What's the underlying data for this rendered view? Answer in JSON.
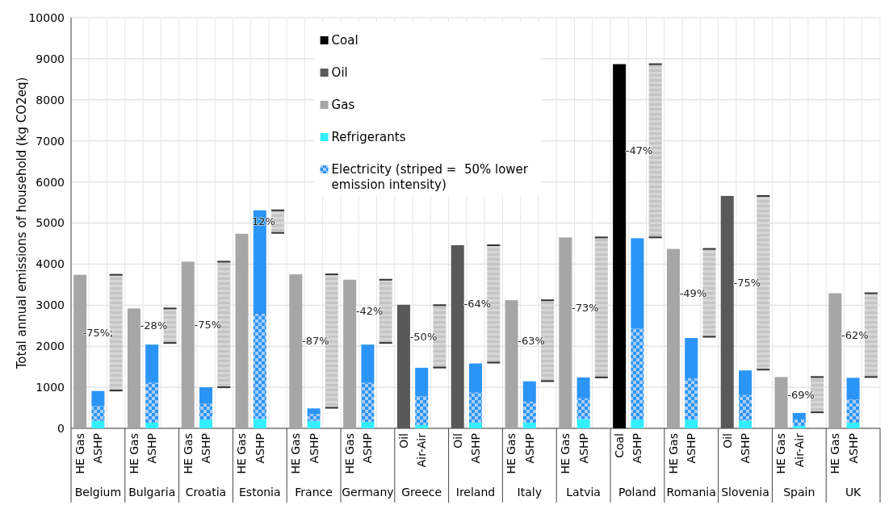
{
  "chart_data": {
    "type": "bar",
    "stacked": true,
    "ylabel": "Total annual emissions of household (kg CO2eq)",
    "categories": [
      "HE Gas",
      "ASHP",
      null,
      "HE Gas",
      "ASHP",
      null,
      "HE Gas",
      "ASHP",
      null,
      "HE Gas",
      "ASHP",
      null,
      "HE Gas",
      "ASHP",
      null,
      "HE Gas",
      "ASHP",
      null,
      "Oil",
      "Air-Air",
      null,
      "Oil",
      "ASHP",
      null,
      "HE Gas",
      "ASHP",
      null,
      "HE Gas",
      "ASHP",
      null,
      "Coal",
      "ASHP",
      null,
      "HE Gas",
      "ASHP",
      null,
      "Oil",
      "ASHP",
      null,
      "HE Gas",
      "Air-Air",
      null,
      "HE Gas",
      "ASHP",
      null
    ],
    "annotations": [
      "Belgium",
      "Bulgaria",
      "Croatia",
      "Estonia",
      "France",
      "Germany",
      "Greece",
      "Ireland",
      "Italy",
      "Latvia",
      "Poland",
      "Romania",
      "Slovenia",
      "Spain",
      "UK",
      "-75%;",
      "-28%",
      "-75%",
      "12%",
      "-87%",
      "-42%",
      "-50%",
      "-64%",
      "-63%",
      "-73%",
      "-47%",
      "-49%",
      "-75%",
      "-69%",
      "-62%"
    ],
    "series": [
      {
        "name": "Coal",
        "color": "#000000",
        "values": [
          null,
          null,
          null,
          null,
          null,
          null,
          null,
          null,
          null,
          null,
          null,
          null,
          null,
          null,
          null,
          null,
          null,
          null,
          null,
          null,
          null,
          null,
          null,
          null,
          null,
          null,
          null,
          null,
          null,
          null,
          8870,
          null,
          null,
          null,
          null,
          null,
          null,
          null,
          null,
          null,
          null,
          null,
          null,
          null,
          null
        ]
      },
      {
        "name": "Oil",
        "color": "#595959",
        "values": [
          null,
          null,
          null,
          null,
          null,
          null,
          null,
          null,
          null,
          null,
          null,
          null,
          null,
          null,
          null,
          null,
          null,
          null,
          3010,
          null,
          null,
          4460,
          null,
          null,
          null,
          null,
          null,
          null,
          null,
          null,
          null,
          null,
          null,
          null,
          null,
          null,
          5660,
          null,
          null,
          null,
          null,
          null,
          null,
          null,
          null
        ]
      },
      {
        "name": "Gas",
        "color": "#a6a6a6",
        "values": [
          3740,
          null,
          null,
          2920,
          null,
          null,
          4060,
          null,
          null,
          4740,
          null,
          null,
          3750,
          null,
          null,
          3620,
          null,
          null,
          null,
          null,
          null,
          null,
          null,
          null,
          3120,
          null,
          null,
          4650,
          null,
          null,
          null,
          null,
          null,
          4370,
          null,
          null,
          null,
          null,
          null,
          1250,
          null,
          null,
          3290,
          null,
          null
        ]
      },
      {
        "name": "Refrigerants",
        "color": "#33eeff",
        "values": [
          null,
          180,
          null,
          null,
          140,
          null,
          null,
          215,
          null,
          null,
          230,
          null,
          null,
          180,
          null,
          null,
          160,
          null,
          null,
          80,
          null,
          null,
          140,
          null,
          null,
          140,
          null,
          null,
          230,
          null,
          null,
          215,
          null,
          null,
          215,
          null,
          null,
          190,
          null,
          null,
          60,
          null,
          null,
          140,
          null
        ]
      },
      {
        "name": "Electricity (striped =  50% lower emission intensity)",
        "color": "#2b95f7",
        "values": [
          null,
          360,
          null,
          null,
          970,
          null,
          null,
          385,
          null,
          null,
          2560,
          null,
          null,
          165,
          null,
          null,
          950,
          null,
          null,
          700,
          null,
          null,
          730,
          null,
          null,
          510,
          null,
          null,
          500,
          null,
          null,
          2215,
          null,
          null,
          1000,
          null,
          null,
          620,
          null,
          null,
          155,
          null,
          null,
          560,
          null
        ]
      },
      {
        "color": "#2b95f7",
        "values": [
          null,
          370,
          null,
          null,
          930,
          null,
          null,
          400,
          null,
          null,
          2520,
          null,
          null,
          140,
          null,
          null,
          930,
          null,
          null,
          695,
          null,
          null,
          710,
          null,
          null,
          495,
          null,
          null,
          510,
          null,
          null,
          2200,
          null,
          null,
          985,
          null,
          null,
          600,
          null,
          null,
          160,
          null,
          null,
          530,
          null
        ]
      },
      {
        "color": "#c4c4c4",
        "base": [
          null,
          null,
          920,
          null,
          null,
          2080,
          null,
          null,
          1000,
          null,
          null,
          4760,
          null,
          null,
          500,
          null,
          null,
          2080,
          null,
          null,
          1480,
          null,
          null,
          1600,
          null,
          null,
          1150,
          null,
          null,
          1240,
          null,
          null,
          4650,
          null,
          null,
          2230,
          null,
          null,
          1430,
          null,
          null,
          390,
          null,
          null,
          1250
        ],
        "values": [
          null,
          null,
          2820,
          null,
          null,
          840,
          null,
          null,
          3060,
          null,
          null,
          550,
          null,
          null,
          3250,
          null,
          null,
          1540,
          null,
          null,
          1520,
          null,
          null,
          2860,
          null,
          null,
          1970,
          null,
          null,
          3410,
          null,
          null,
          4220,
          null,
          null,
          2140,
          null,
          null,
          4230,
          null,
          null,
          860,
          null,
          null,
          2040
        ]
      }
    ],
    "ylim": [
      0,
      10000
    ],
    "yticks": [
      0,
      1000,
      2000,
      3000,
      4000,
      5000,
      6000,
      7000,
      8000,
      9000,
      10000
    ],
    "grid": true,
    "legend": "top"
  }
}
